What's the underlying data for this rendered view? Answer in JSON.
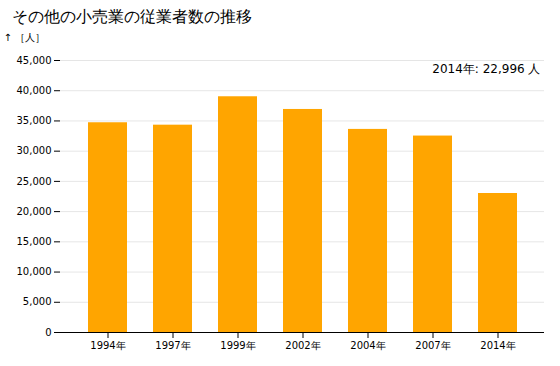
{
  "chart_data": {
    "type": "bar",
    "title": "その他の小売業の従業者数の推移",
    "ylabel": "［人］",
    "annotation": "2014年: 22,996 人",
    "categories": [
      "1994年",
      "1997年",
      "1999年",
      "2002年",
      "2004年",
      "2007年",
      "2014年"
    ],
    "values": [
      34700,
      34300,
      39000,
      36900,
      33600,
      32500,
      22996
    ],
    "color": "#FFA500",
    "ylim": [
      0,
      45000
    ],
    "yticks": [
      0,
      {
        "value": 5000,
        "label": "5,000"
      },
      {
        "value": 10000,
        "label": "10,000"
      },
      {
        "value": 15000,
        "label": "15,000"
      },
      {
        "value": 20000,
        "label": "20,000"
      },
      {
        "value": 25000,
        "label": "25,000"
      },
      {
        "value": 30000,
        "label": "30,000"
      },
      {
        "value": 35000,
        "label": "35,000"
      },
      {
        "value": 40000,
        "label": "40,000"
      },
      {
        "value": 45000,
        "label": "45,000"
      }
    ],
    "grid": true
  }
}
